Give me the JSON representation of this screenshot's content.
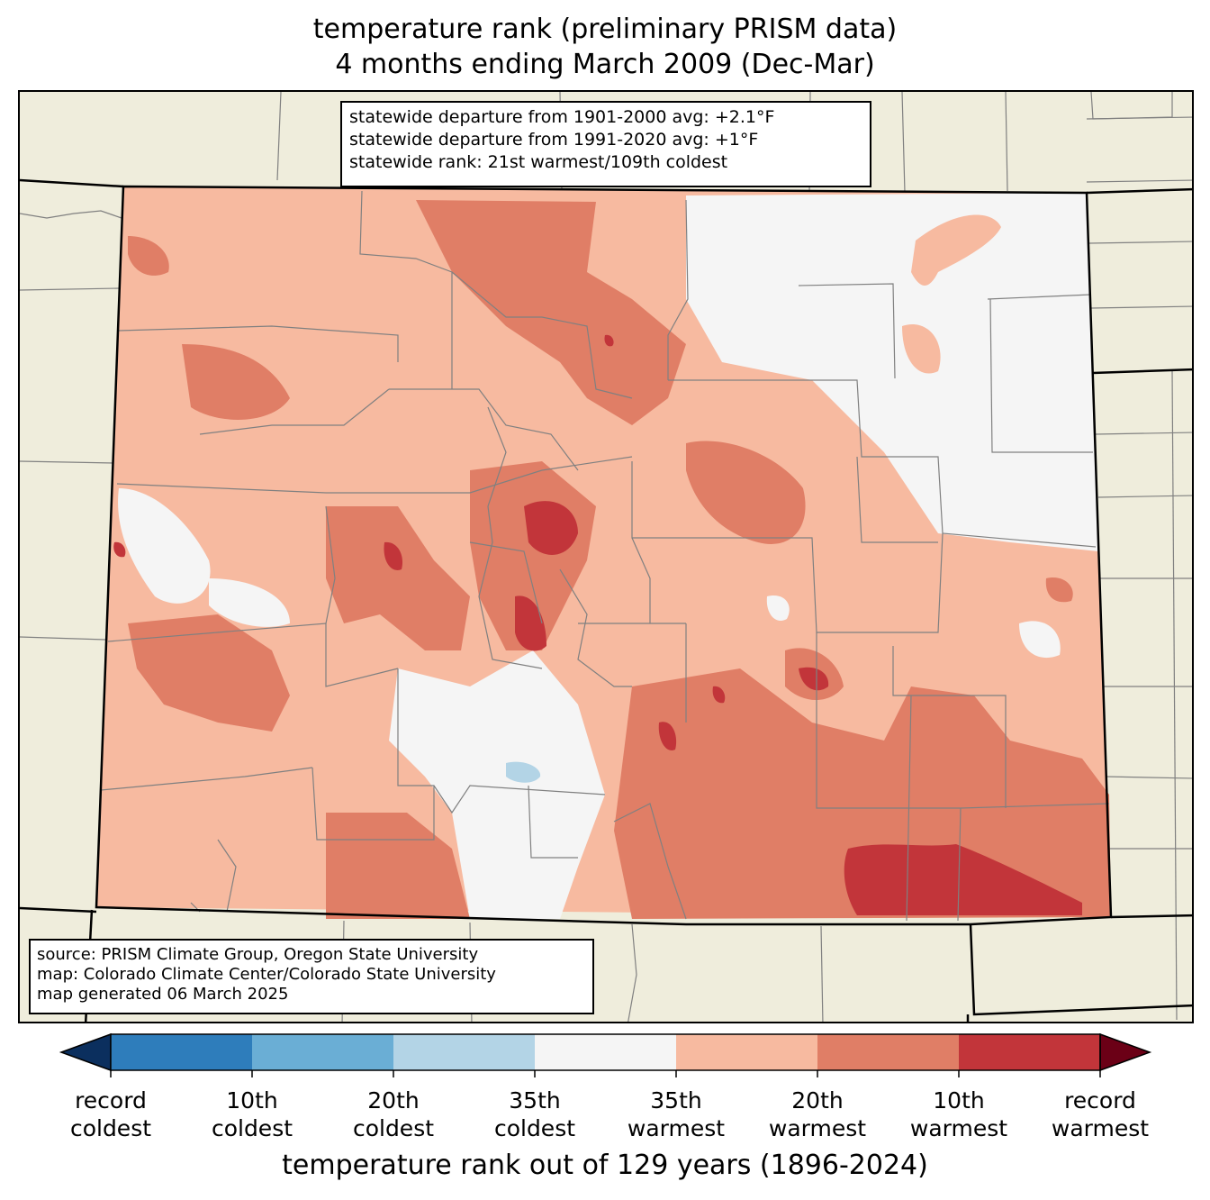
{
  "title": {
    "line1": "temperature rank (preliminary PRISM data)",
    "line2": "4 months ending March 2009 (Dec-Mar)"
  },
  "stats": {
    "line1": "statewide departure from 1901-2000 avg: +2.1°F",
    "line2": "statewide departure from 1991-2020 avg: +1°F",
    "line3": "statewide rank: 21st warmest/109th coldest"
  },
  "source": {
    "line1": "source: PRISM Climate Group, Oregon State University",
    "line2": "map: Colorado Climate Center/Colorado State University",
    "line3": "map generated 06 March 2025"
  },
  "colorbar": {
    "title": "temperature rank out of 129 years (1896-2024)",
    "colors": {
      "extend_cold": "#0b2f5e",
      "record_coldest_to_10th": "#2e7dbb",
      "10th_to_20th_coldest": "#6aaed5",
      "20th_to_35th_coldest": "#b3d4e6",
      "normal": "#f5f5f5",
      "35th_to_20th_warmest": "#f7baa0",
      "20th_to_10th_warmest": "#e07e66",
      "10th_warmest_to_record": "#c2353a",
      "extend_warm": "#6b0016"
    },
    "ticks": [
      {
        "line1": "record",
        "line2": "coldest"
      },
      {
        "line1": "10th",
        "line2": "coldest"
      },
      {
        "line1": "20th",
        "line2": "coldest"
      },
      {
        "line1": "35th",
        "line2": "coldest"
      },
      {
        "line1": "35th",
        "line2": "warmest"
      },
      {
        "line1": "20th",
        "line2": "warmest"
      },
      {
        "line1": "10th",
        "line2": "warmest"
      },
      {
        "line1": "record",
        "line2": "warmest"
      }
    ]
  },
  "map_colors": {
    "land_outside": "#efeddc",
    "county_lines": "#808080",
    "state_lines": "#000000"
  }
}
